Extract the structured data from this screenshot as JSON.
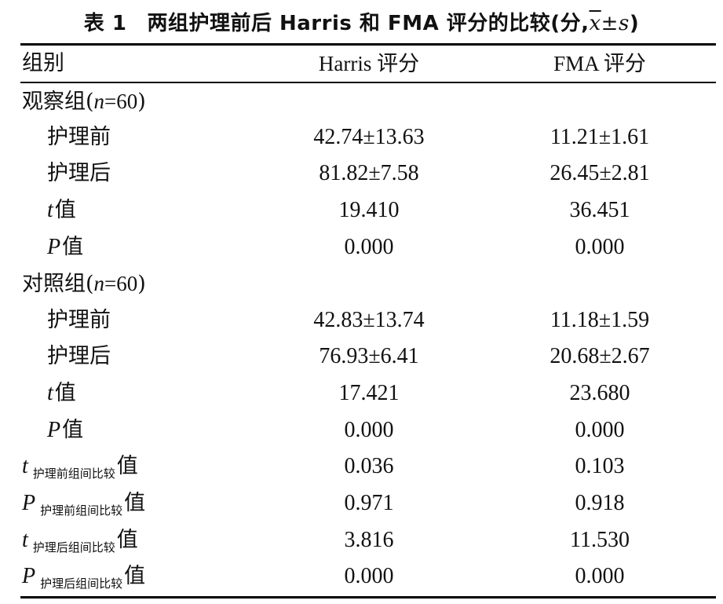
{
  "caption": {
    "label": "表 1",
    "text": "两组护理前后 Harris 和 FMA 评分的比较(分,",
    "xbar": "x",
    "plusminus": "±",
    "s": "s",
    "close": ")"
  },
  "headers": {
    "group": "组别",
    "harris": "Harris 评分",
    "fma": "FMA 评分"
  },
  "groups": [
    {
      "name": "观察组(",
      "n_var": "n",
      "n_eq": "=60",
      "close": ")",
      "rows": [
        {
          "label": "护理前",
          "harris": "42.74±13.63",
          "fma": "11.21±1.61"
        },
        {
          "label": "护理后",
          "harris": "81.82±7.58",
          "fma": "26.45±2.81"
        },
        {
          "var": "t",
          "label": "值",
          "harris": "19.410",
          "fma": "36.451"
        },
        {
          "var": "P",
          "label": "值",
          "harris": "0.000",
          "fma": "0.000"
        }
      ]
    },
    {
      "name": "对照组(",
      "n_var": "n",
      "n_eq": "=60",
      "close": ")",
      "rows": [
        {
          "label": "护理前",
          "harris": "42.83±13.74",
          "fma": "11.18±1.59"
        },
        {
          "label": "护理后",
          "harris": "76.93±6.41",
          "fma": "20.68±2.67"
        },
        {
          "var": "t",
          "label": "值",
          "harris": "17.421",
          "fma": "23.680"
        },
        {
          "var": "P",
          "label": "值",
          "harris": "0.000",
          "fma": "0.000"
        }
      ]
    }
  ],
  "comparisons": [
    {
      "var": "t",
      "sub": "护理前组间比较",
      "suffix": "值",
      "harris": "0.036",
      "fma": "0.103"
    },
    {
      "var": "P",
      "sub": "护理前组间比较",
      "suffix": "值",
      "harris": "0.971",
      "fma": "0.918"
    },
    {
      "var": "t",
      "sub": "护理后组间比较",
      "suffix": "值",
      "harris": "3.816",
      "fma": "11.530"
    },
    {
      "var": "P",
      "sub": "护理后组间比较",
      "suffix": "值",
      "harris": "0.000",
      "fma": "0.000"
    }
  ]
}
